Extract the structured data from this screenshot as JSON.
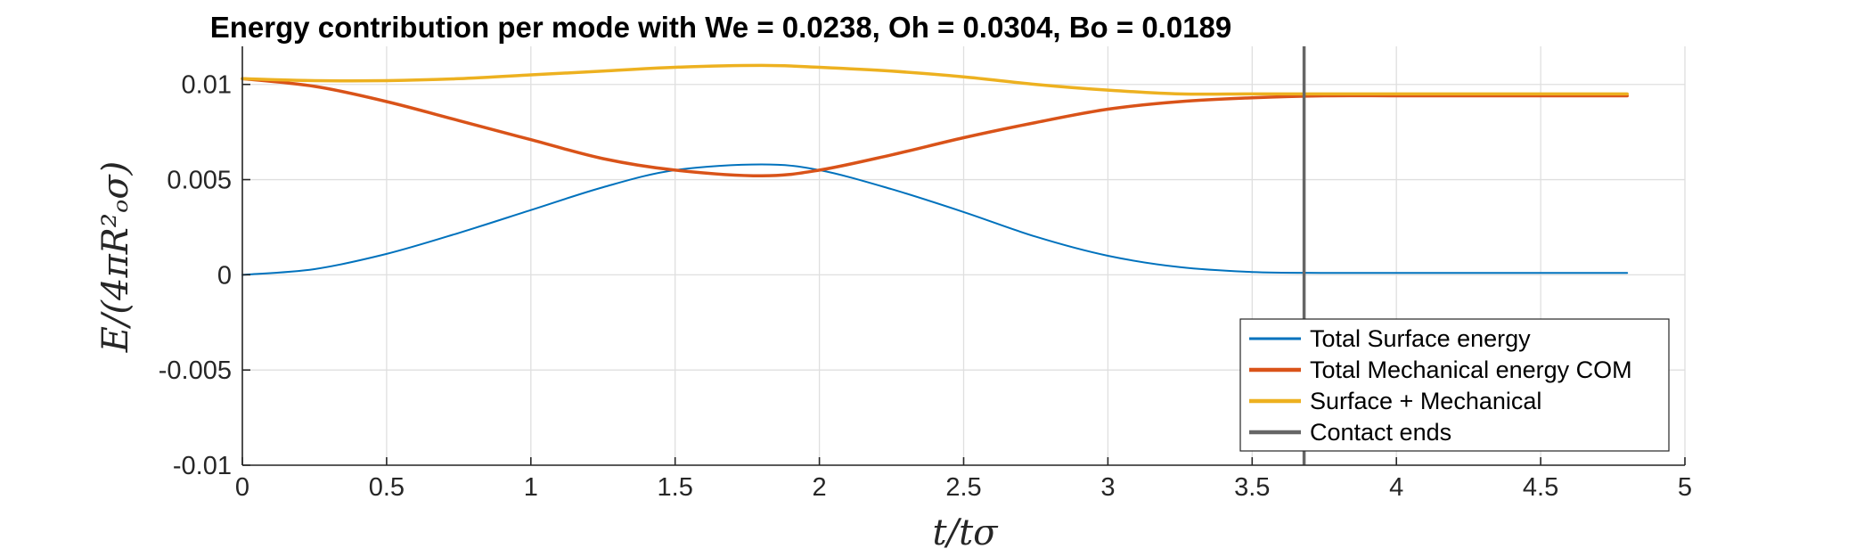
{
  "chart_data": {
    "type": "line",
    "title": "Energy contribution per mode with We = 0.0238, Oh = 0.0304, Bo = 0.0189",
    "xlabel": "t/tσ",
    "ylabel": "E/(4πR²ₒσ)",
    "xlim": [
      0,
      5
    ],
    "ylim": [
      -0.01,
      0.012
    ],
    "xticks": [
      0,
      0.5,
      1,
      1.5,
      2,
      2.5,
      3,
      3.5,
      4,
      4.5,
      5
    ],
    "xtick_labels": [
      "0",
      "0.5",
      "1",
      "1.5",
      "2",
      "2.5",
      "3",
      "3.5",
      "4",
      "4.5",
      "5"
    ],
    "yticks": [
      -0.01,
      -0.005,
      0,
      0.005,
      0.01
    ],
    "ytick_labels": [
      "-0.01",
      "-0.005",
      "0",
      "0.005",
      "0.01"
    ],
    "grid": true,
    "legend_position": "bottom-right",
    "x": [
      0,
      0.25,
      0.5,
      0.75,
      1,
      1.25,
      1.5,
      1.8,
      2,
      2.25,
      2.5,
      2.75,
      3,
      3.25,
      3.5,
      3.75,
      4,
      4.25,
      4.5,
      4.8
    ],
    "series": [
      {
        "name": "Total Surface energy",
        "color": "#0072BD",
        "width": 2,
        "values": [
          0,
          0.0003,
          0.0011,
          0.0022,
          0.0034,
          0.0046,
          0.0055,
          0.0058,
          0.0055,
          0.0045,
          0.0033,
          0.002,
          0.001,
          0.0004,
          0.00015,
          0.0001,
          0.0001,
          0.0001,
          0.0001,
          0.0001
        ]
      },
      {
        "name": "Total Mechanical energy COM",
        "color": "#D95319",
        "width": 3.5,
        "values": [
          0.0103,
          0.0099,
          0.0091,
          0.0081,
          0.0071,
          0.0061,
          0.0055,
          0.0052,
          0.0055,
          0.0063,
          0.0072,
          0.008,
          0.0087,
          0.0091,
          0.0093,
          0.0094,
          0.0094,
          0.0094,
          0.0094,
          0.0094
        ]
      },
      {
        "name": "Surface + Mechanical",
        "color": "#EDB120",
        "width": 3.5,
        "values": [
          0.0103,
          0.0102,
          0.0102,
          0.0103,
          0.0105,
          0.0107,
          0.0109,
          0.011,
          0.0109,
          0.0107,
          0.0104,
          0.01,
          0.0097,
          0.0095,
          0.0095,
          0.0095,
          0.0095,
          0.0095,
          0.0095,
          0.0095
        ]
      },
      {
        "name": "Contact ends",
        "color": "#666666",
        "width": 3.5,
        "type": "vline",
        "x": 3.68
      }
    ]
  }
}
